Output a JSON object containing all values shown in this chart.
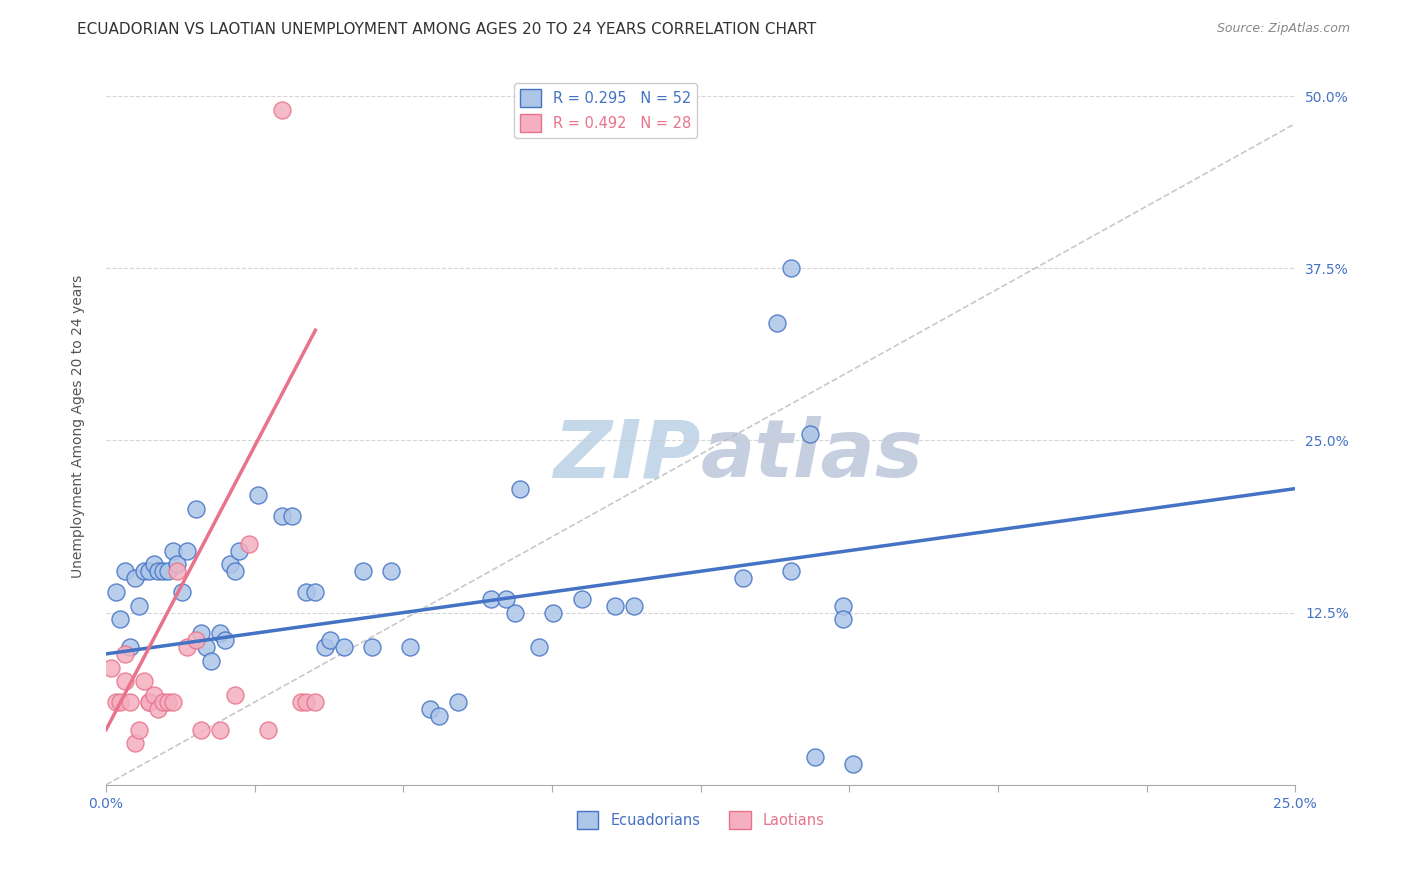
{
  "title": "ECUADORIAN VS LAOTIAN UNEMPLOYMENT AMONG AGES 20 TO 24 YEARS CORRELATION CHART",
  "source": "Source: ZipAtlas.com",
  "ylabel_label": "Unemployment Among Ages 20 to 24 years",
  "xlim": [
    0.0,
    0.25
  ],
  "ylim": [
    0.0,
    0.52
  ],
  "ecuadorians": [
    [
      0.002,
      0.14
    ],
    [
      0.003,
      0.12
    ],
    [
      0.004,
      0.155
    ],
    [
      0.005,
      0.1
    ],
    [
      0.006,
      0.15
    ],
    [
      0.007,
      0.13
    ],
    [
      0.008,
      0.155
    ],
    [
      0.009,
      0.155
    ],
    [
      0.01,
      0.16
    ],
    [
      0.011,
      0.155
    ],
    [
      0.012,
      0.155
    ],
    [
      0.013,
      0.155
    ],
    [
      0.014,
      0.17
    ],
    [
      0.015,
      0.16
    ],
    [
      0.016,
      0.14
    ],
    [
      0.017,
      0.17
    ],
    [
      0.019,
      0.2
    ],
    [
      0.02,
      0.11
    ],
    [
      0.021,
      0.1
    ],
    [
      0.022,
      0.09
    ],
    [
      0.024,
      0.11
    ],
    [
      0.025,
      0.105
    ],
    [
      0.026,
      0.16
    ],
    [
      0.027,
      0.155
    ],
    [
      0.028,
      0.17
    ],
    [
      0.032,
      0.21
    ],
    [
      0.037,
      0.195
    ],
    [
      0.039,
      0.195
    ],
    [
      0.042,
      0.14
    ],
    [
      0.044,
      0.14
    ],
    [
      0.046,
      0.1
    ],
    [
      0.047,
      0.105
    ],
    [
      0.05,
      0.1
    ],
    [
      0.054,
      0.155
    ],
    [
      0.056,
      0.1
    ],
    [
      0.06,
      0.155
    ],
    [
      0.064,
      0.1
    ],
    [
      0.068,
      0.055
    ],
    [
      0.07,
      0.05
    ],
    [
      0.074,
      0.06
    ],
    [
      0.081,
      0.135
    ],
    [
      0.084,
      0.135
    ],
    [
      0.086,
      0.125
    ],
    [
      0.087,
      0.215
    ],
    [
      0.091,
      0.1
    ],
    [
      0.094,
      0.125
    ],
    [
      0.1,
      0.135
    ],
    [
      0.107,
      0.13
    ],
    [
      0.111,
      0.13
    ],
    [
      0.134,
      0.15
    ],
    [
      0.141,
      0.335
    ],
    [
      0.144,
      0.375
    ],
    [
      0.144,
      0.155
    ],
    [
      0.148,
      0.255
    ],
    [
      0.149,
      0.02
    ],
    [
      0.155,
      0.13
    ],
    [
      0.155,
      0.12
    ],
    [
      0.157,
      0.015
    ]
  ],
  "laotians": [
    [
      0.001,
      0.085
    ],
    [
      0.002,
      0.06
    ],
    [
      0.003,
      0.06
    ],
    [
      0.004,
      0.075
    ],
    [
      0.004,
      0.095
    ],
    [
      0.005,
      0.06
    ],
    [
      0.006,
      0.03
    ],
    [
      0.007,
      0.04
    ],
    [
      0.008,
      0.075
    ],
    [
      0.009,
      0.06
    ],
    [
      0.009,
      0.06
    ],
    [
      0.01,
      0.065
    ],
    [
      0.011,
      0.055
    ],
    [
      0.012,
      0.06
    ],
    [
      0.013,
      0.06
    ],
    [
      0.014,
      0.06
    ],
    [
      0.015,
      0.155
    ],
    [
      0.017,
      0.1
    ],
    [
      0.019,
      0.105
    ],
    [
      0.02,
      0.04
    ],
    [
      0.024,
      0.04
    ],
    [
      0.027,
      0.065
    ],
    [
      0.03,
      0.175
    ],
    [
      0.034,
      0.04
    ],
    [
      0.037,
      0.49
    ],
    [
      0.041,
      0.06
    ],
    [
      0.042,
      0.06
    ],
    [
      0.044,
      0.06
    ]
  ],
  "ecua_line": {
    "x": [
      0.0,
      0.25
    ],
    "y": [
      0.095,
      0.215
    ]
  },
  "laot_line": {
    "x": [
      0.0,
      0.044
    ],
    "y": [
      0.04,
      0.33
    ]
  },
  "diag_line": {
    "x": [
      0.0,
      0.25
    ],
    "y": [
      0.0,
      0.48
    ]
  },
  "ecua_color": "#4472c4",
  "laot_color": "#e8738a",
  "ecua_scatter_color": "#adc6e8",
  "laot_scatter_color": "#f4afc0",
  "title_fontsize": 11,
  "source_fontsize": 9,
  "axis_label_fontsize": 10,
  "tick_fontsize": 10,
  "watermark_zip": "ZIP",
  "watermark_atlas": "atlas",
  "watermark_color_zip": "#c5d8ea",
  "watermark_color_atlas": "#c5cfe0"
}
